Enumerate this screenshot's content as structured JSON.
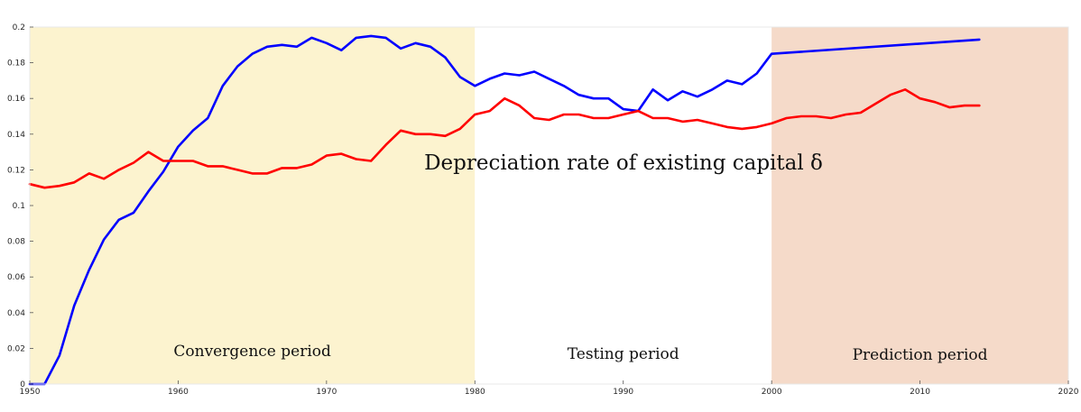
{
  "chart_data": {
    "type": "line",
    "title": "Depreciation rate of existing capital δ",
    "xlabel": "",
    "ylabel": "",
    "xlim": [
      1950,
      2020
    ],
    "ylim": [
      0,
      0.2
    ],
    "x_ticks": [
      "1950",
      "1960",
      "1970",
      "1980",
      "1990",
      "2000",
      "2010",
      "2020"
    ],
    "y_ticks": [
      "0",
      "0.02",
      "0.04",
      "0.06",
      "0.08",
      "0.1",
      "0.12",
      "0.14",
      "0.16",
      "0.18",
      "0.2"
    ],
    "grid": false,
    "regions": [
      {
        "label": "Convergence period",
        "start": 1950,
        "end": 1980,
        "color": "#fcf3cf"
      },
      {
        "label": "Testing period",
        "start": 1980,
        "end": 2000,
        "color": "#ffffff"
      },
      {
        "label": "Prediction period",
        "start": 2000,
        "end": 2020,
        "color": "#f5dac9"
      }
    ],
    "series": [
      {
        "color": "#0000ff",
        "x": [
          1950,
          1951,
          1952,
          1953,
          1954,
          1955,
          1956,
          1957,
          1958,
          1959,
          1960,
          1961,
          1962,
          1963,
          1964,
          1965,
          1966,
          1967,
          1968,
          1969,
          1970,
          1971,
          1972,
          1973,
          1974,
          1975,
          1976,
          1977,
          1978,
          1979,
          1980,
          1981,
          1982,
          1983,
          1984,
          1985,
          1986,
          1987,
          1988,
          1989,
          1990,
          1991,
          1992,
          1993,
          1994,
          1995,
          1996,
          1997,
          1998,
          1999,
          2000,
          2014
        ],
        "y": [
          0,
          0,
          0.016,
          0.044,
          0.064,
          0.081,
          0.092,
          0.096,
          0.108,
          0.119,
          0.133,
          0.142,
          0.149,
          0.167,
          0.178,
          0.185,
          0.189,
          0.19,
          0.189,
          0.194,
          0.191,
          0.187,
          0.194,
          0.195,
          0.194,
          0.188,
          0.191,
          0.189,
          0.183,
          0.172,
          0.167,
          0.171,
          0.174,
          0.173,
          0.175,
          0.171,
          0.167,
          0.162,
          0.16,
          0.16,
          0.154,
          0.153,
          0.165,
          0.159,
          0.164,
          0.161,
          0.165,
          0.17,
          0.168,
          0.174,
          0.185,
          0.193
        ]
      },
      {
        "color": "#ff0000",
        "x": [
          1950,
          1951,
          1952,
          1953,
          1954,
          1955,
          1956,
          1957,
          1958,
          1959,
          1960,
          1961,
          1962,
          1963,
          1964,
          1965,
          1966,
          1967,
          1968,
          1969,
          1970,
          1971,
          1972,
          1973,
          1974,
          1975,
          1976,
          1977,
          1978,
          1979,
          1980,
          1981,
          1982,
          1983,
          1984,
          1985,
          1986,
          1987,
          1988,
          1989,
          1990,
          1991,
          1992,
          1993,
          1994,
          1995,
          1996,
          1997,
          1998,
          1999,
          2000,
          2001,
          2002,
          2003,
          2004,
          2005,
          2006,
          2007,
          2008,
          2009,
          2010,
          2011,
          2012,
          2013,
          2014
        ],
        "y": [
          0.112,
          0.11,
          0.111,
          0.113,
          0.118,
          0.115,
          0.12,
          0.124,
          0.13,
          0.125,
          0.125,
          0.125,
          0.122,
          0.122,
          0.12,
          0.118,
          0.118,
          0.121,
          0.121,
          0.123,
          0.128,
          0.129,
          0.126,
          0.125,
          0.134,
          0.142,
          0.14,
          0.14,
          0.139,
          0.143,
          0.151,
          0.153,
          0.16,
          0.156,
          0.149,
          0.148,
          0.151,
          0.151,
          0.149,
          0.149,
          0.151,
          0.153,
          0.149,
          0.149,
          0.147,
          0.148,
          0.146,
          0.144,
          0.143,
          0.144,
          0.146,
          0.149,
          0.15,
          0.15,
          0.149,
          0.151,
          0.152,
          0.157,
          0.162,
          0.165,
          0.16,
          0.158,
          0.155,
          0.156,
          0.156
        ]
      }
    ]
  }
}
